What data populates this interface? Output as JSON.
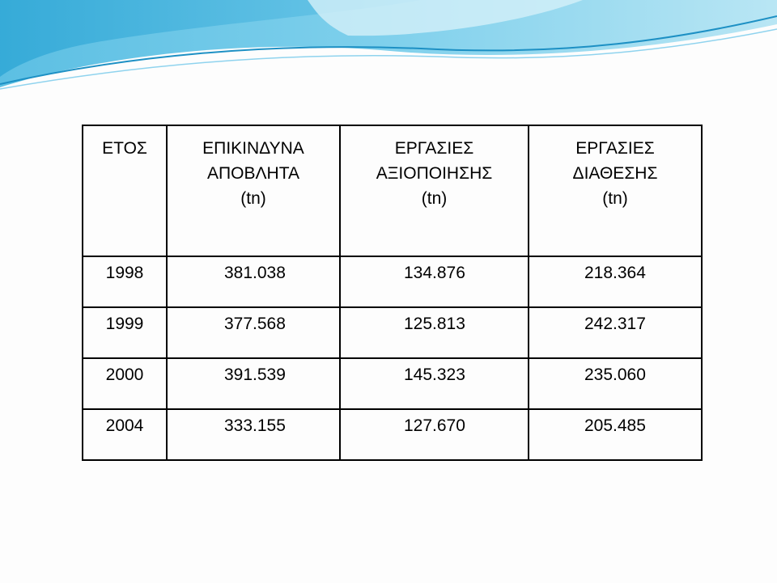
{
  "table": {
    "headers": [
      {
        "lines": [
          "ΕΤΟΣ"
        ]
      },
      {
        "lines": [
          "ΕΠΙΚΙΝΔΥΝΑ",
          "ΑΠΟΒΛΗΤΑ",
          "(tn)"
        ]
      },
      {
        "lines": [
          "ΕΡΓΑΣΙΕΣ",
          "ΑΞΙΟΠΟΙΗΣΗΣ",
          "(tn)"
        ]
      },
      {
        "lines": [
          "ΕΡΓΑΣΙΕΣ",
          "ΔΙΑΘΕΣΗΣ",
          "(tn)"
        ]
      }
    ],
    "rows": [
      {
        "year": "1998",
        "hazardous": "381.038",
        "recovery": "134.876",
        "disposal": "218.364"
      },
      {
        "year": "1999",
        "hazardous": "377.568",
        "recovery": "125.813",
        "disposal": "242.317"
      },
      {
        "year": "2000",
        "hazardous": "391.539",
        "recovery": "145.323",
        "disposal": "235.060"
      },
      {
        "year": "2004",
        "hazardous": "333.155",
        "recovery": "127.670",
        "disposal": "205.485"
      }
    ]
  },
  "theme": {
    "wave_dark": "#4bb3dd",
    "wave_light": "#a8dcef",
    "line_color": "#000000"
  }
}
